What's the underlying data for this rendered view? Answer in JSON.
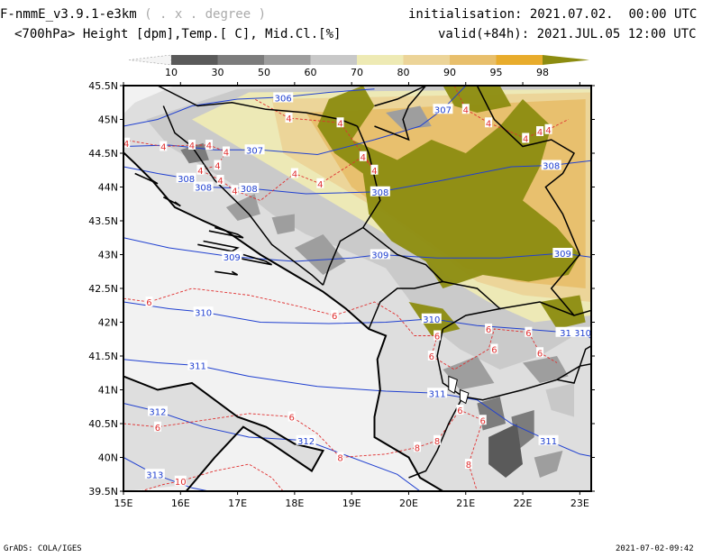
{
  "header": {
    "model_prefix": "F-nmmE_v3.9.1-e3km",
    "grid_note": "( . x . degree )",
    "subtitle": "<700hPa> Height [dpm],Temp.[ C], Mid.Cl.[%]",
    "init_label": "initialisation:",
    "init_value": "2021.07.02.  00:00 UTC",
    "valid_label": "valid(+84h):",
    "valid_value": "2021.JUL.05 12:00 UTC"
  },
  "colorbar": {
    "ticks": [
      "10",
      "30",
      "50",
      "60",
      "70",
      "80",
      "90",
      "95",
      "98"
    ],
    "colors": [
      "#f4f4f4",
      "#5a5a5a",
      "#7c7c7c",
      "#9e9e9e",
      "#c8c8c8",
      "#eeeab4",
      "#ecd498",
      "#e8bf6c",
      "#e8ac2c",
      "#8c8c10"
    ]
  },
  "map": {
    "lat_labels": [
      "45.5N",
      "45N",
      "44.5N",
      "44N",
      "43.5N",
      "43N",
      "42.5N",
      "42N",
      "41.5N",
      "41N",
      "40.5N",
      "40N",
      "39.5N"
    ],
    "lon_labels": [
      "15E",
      "16E",
      "17E",
      "18E",
      "19E",
      "20E",
      "21E",
      "22E",
      "23E"
    ],
    "lat_range": [
      39.5,
      45.5
    ],
    "lon_range": [
      15,
      23.2
    ],
    "height_contour_color": "#2040d0",
    "temp_contour_color": "#e03030",
    "height_contours": [
      {
        "value": "306",
        "label_lon": 17.8,
        "label_lat": 45.32
      },
      {
        "value": "307",
        "label_lon": 20.6,
        "label_lat": 45.15
      },
      {
        "value": "307",
        "label_lon": 17.3,
        "label_lat": 44.55
      },
      {
        "value": "308",
        "label_lon": 16.1,
        "label_lat": 44.13
      },
      {
        "value": "308",
        "label_lon": 16.4,
        "label_lat": 44.0
      },
      {
        "value": "308",
        "label_lon": 17.2,
        "label_lat": 43.98
      },
      {
        "value": "308",
        "label_lon": 19.5,
        "label_lat": 43.93
      },
      {
        "value": "308",
        "label_lon": 22.5,
        "label_lat": 44.32
      },
      {
        "value": "309",
        "label_lon": 16.9,
        "label_lat": 42.97
      },
      {
        "value": "309",
        "label_lon": 19.5,
        "label_lat": 43.0
      },
      {
        "value": "309",
        "label_lon": 22.7,
        "label_lat": 43.02
      },
      {
        "value": "310",
        "label_lon": 16.4,
        "label_lat": 42.15
      },
      {
        "value": "310",
        "label_lon": 20.4,
        "label_lat": 42.05
      },
      {
        "value": "310",
        "label_lon": 23.05,
        "label_lat": 41.85
      },
      {
        "value": "311",
        "label_lon": 16.3,
        "label_lat": 41.36
      },
      {
        "value": "311",
        "label_lon": 20.5,
        "label_lat": 40.95
      },
      {
        "value": "311",
        "label_lon": 22.45,
        "label_lat": 40.25
      },
      {
        "value": "312",
        "label_lon": 15.6,
        "label_lat": 40.68
      },
      {
        "value": "312",
        "label_lon": 18.2,
        "label_lat": 40.25
      },
      {
        "value": "313",
        "label_lon": 15.55,
        "label_lat": 39.75
      },
      {
        "value": "31",
        "label_lon": 22.75,
        "label_lat": 41.85
      }
    ],
    "temp_labels": [
      {
        "value": "4",
        "lon": 17.9,
        "lat": 45.02
      },
      {
        "value": "4",
        "lon": 18.8,
        "lat": 44.95
      },
      {
        "value": "4",
        "lon": 19.4,
        "lat": 44.25
      },
      {
        "value": "4",
        "lon": 19.2,
        "lat": 44.45
      },
      {
        "value": "4",
        "lon": 21.0,
        "lat": 45.15
      },
      {
        "value": "4",
        "lon": 21.4,
        "lat": 44.95
      },
      {
        "value": "4",
        "lon": 22.05,
        "lat": 44.72
      },
      {
        "value": "4",
        "lon": 22.3,
        "lat": 44.82
      },
      {
        "value": "4",
        "lon": 22.45,
        "lat": 44.85
      },
      {
        "value": "4",
        "lon": 15.05,
        "lat": 44.65
      },
      {
        "value": "4",
        "lon": 15.7,
        "lat": 44.6
      },
      {
        "value": "4",
        "lon": 16.2,
        "lat": 44.62
      },
      {
        "value": "4",
        "lon": 16.5,
        "lat": 44.62
      },
      {
        "value": "4",
        "lon": 16.8,
        "lat": 44.52
      },
      {
        "value": "4",
        "lon": 16.65,
        "lat": 44.32
      },
      {
        "value": "4",
        "lon": 16.35,
        "lat": 44.25
      },
      {
        "value": "4",
        "lon": 16.7,
        "lat": 44.1
      },
      {
        "value": "4",
        "lon": 16.95,
        "lat": 43.95
      },
      {
        "value": "4",
        "lon": 18.45,
        "lat": 44.05
      },
      {
        "value": "4",
        "lon": 18.0,
        "lat": 44.2
      },
      {
        "value": "6",
        "lon": 15.45,
        "lat": 42.3
      },
      {
        "value": "6",
        "lon": 18.7,
        "lat": 42.1
      },
      {
        "value": "6",
        "lon": 20.5,
        "lat": 41.8
      },
      {
        "value": "6",
        "lon": 20.4,
        "lat": 41.5
      },
      {
        "value": "6",
        "lon": 21.4,
        "lat": 41.9
      },
      {
        "value": "6",
        "lon": 21.5,
        "lat": 41.6
      },
      {
        "value": "6",
        "lon": 22.1,
        "lat": 41.85
      },
      {
        "value": "6",
        "lon": 22.3,
        "lat": 41.55
      },
      {
        "value": "6",
        "lon": 20.9,
        "lat": 40.7
      },
      {
        "value": "6",
        "lon": 21.3,
        "lat": 40.55
      },
      {
        "value": "6",
        "lon": 17.95,
        "lat": 40.6
      },
      {
        "value": "6",
        "lon": 15.6,
        "lat": 40.45
      },
      {
        "value": "8",
        "lon": 18.8,
        "lat": 40.0
      },
      {
        "value": "8",
        "lon": 20.15,
        "lat": 40.15
      },
      {
        "value": "8",
        "lon": 20.5,
        "lat": 40.25
      },
      {
        "value": "8",
        "lon": 21.05,
        "lat": 39.9
      },
      {
        "value": "10",
        "lon": 16.0,
        "lat": 39.65
      }
    ]
  },
  "footer": {
    "left": "GrADS: COLA/IGES",
    "right": "2021-07-02-09:42"
  }
}
